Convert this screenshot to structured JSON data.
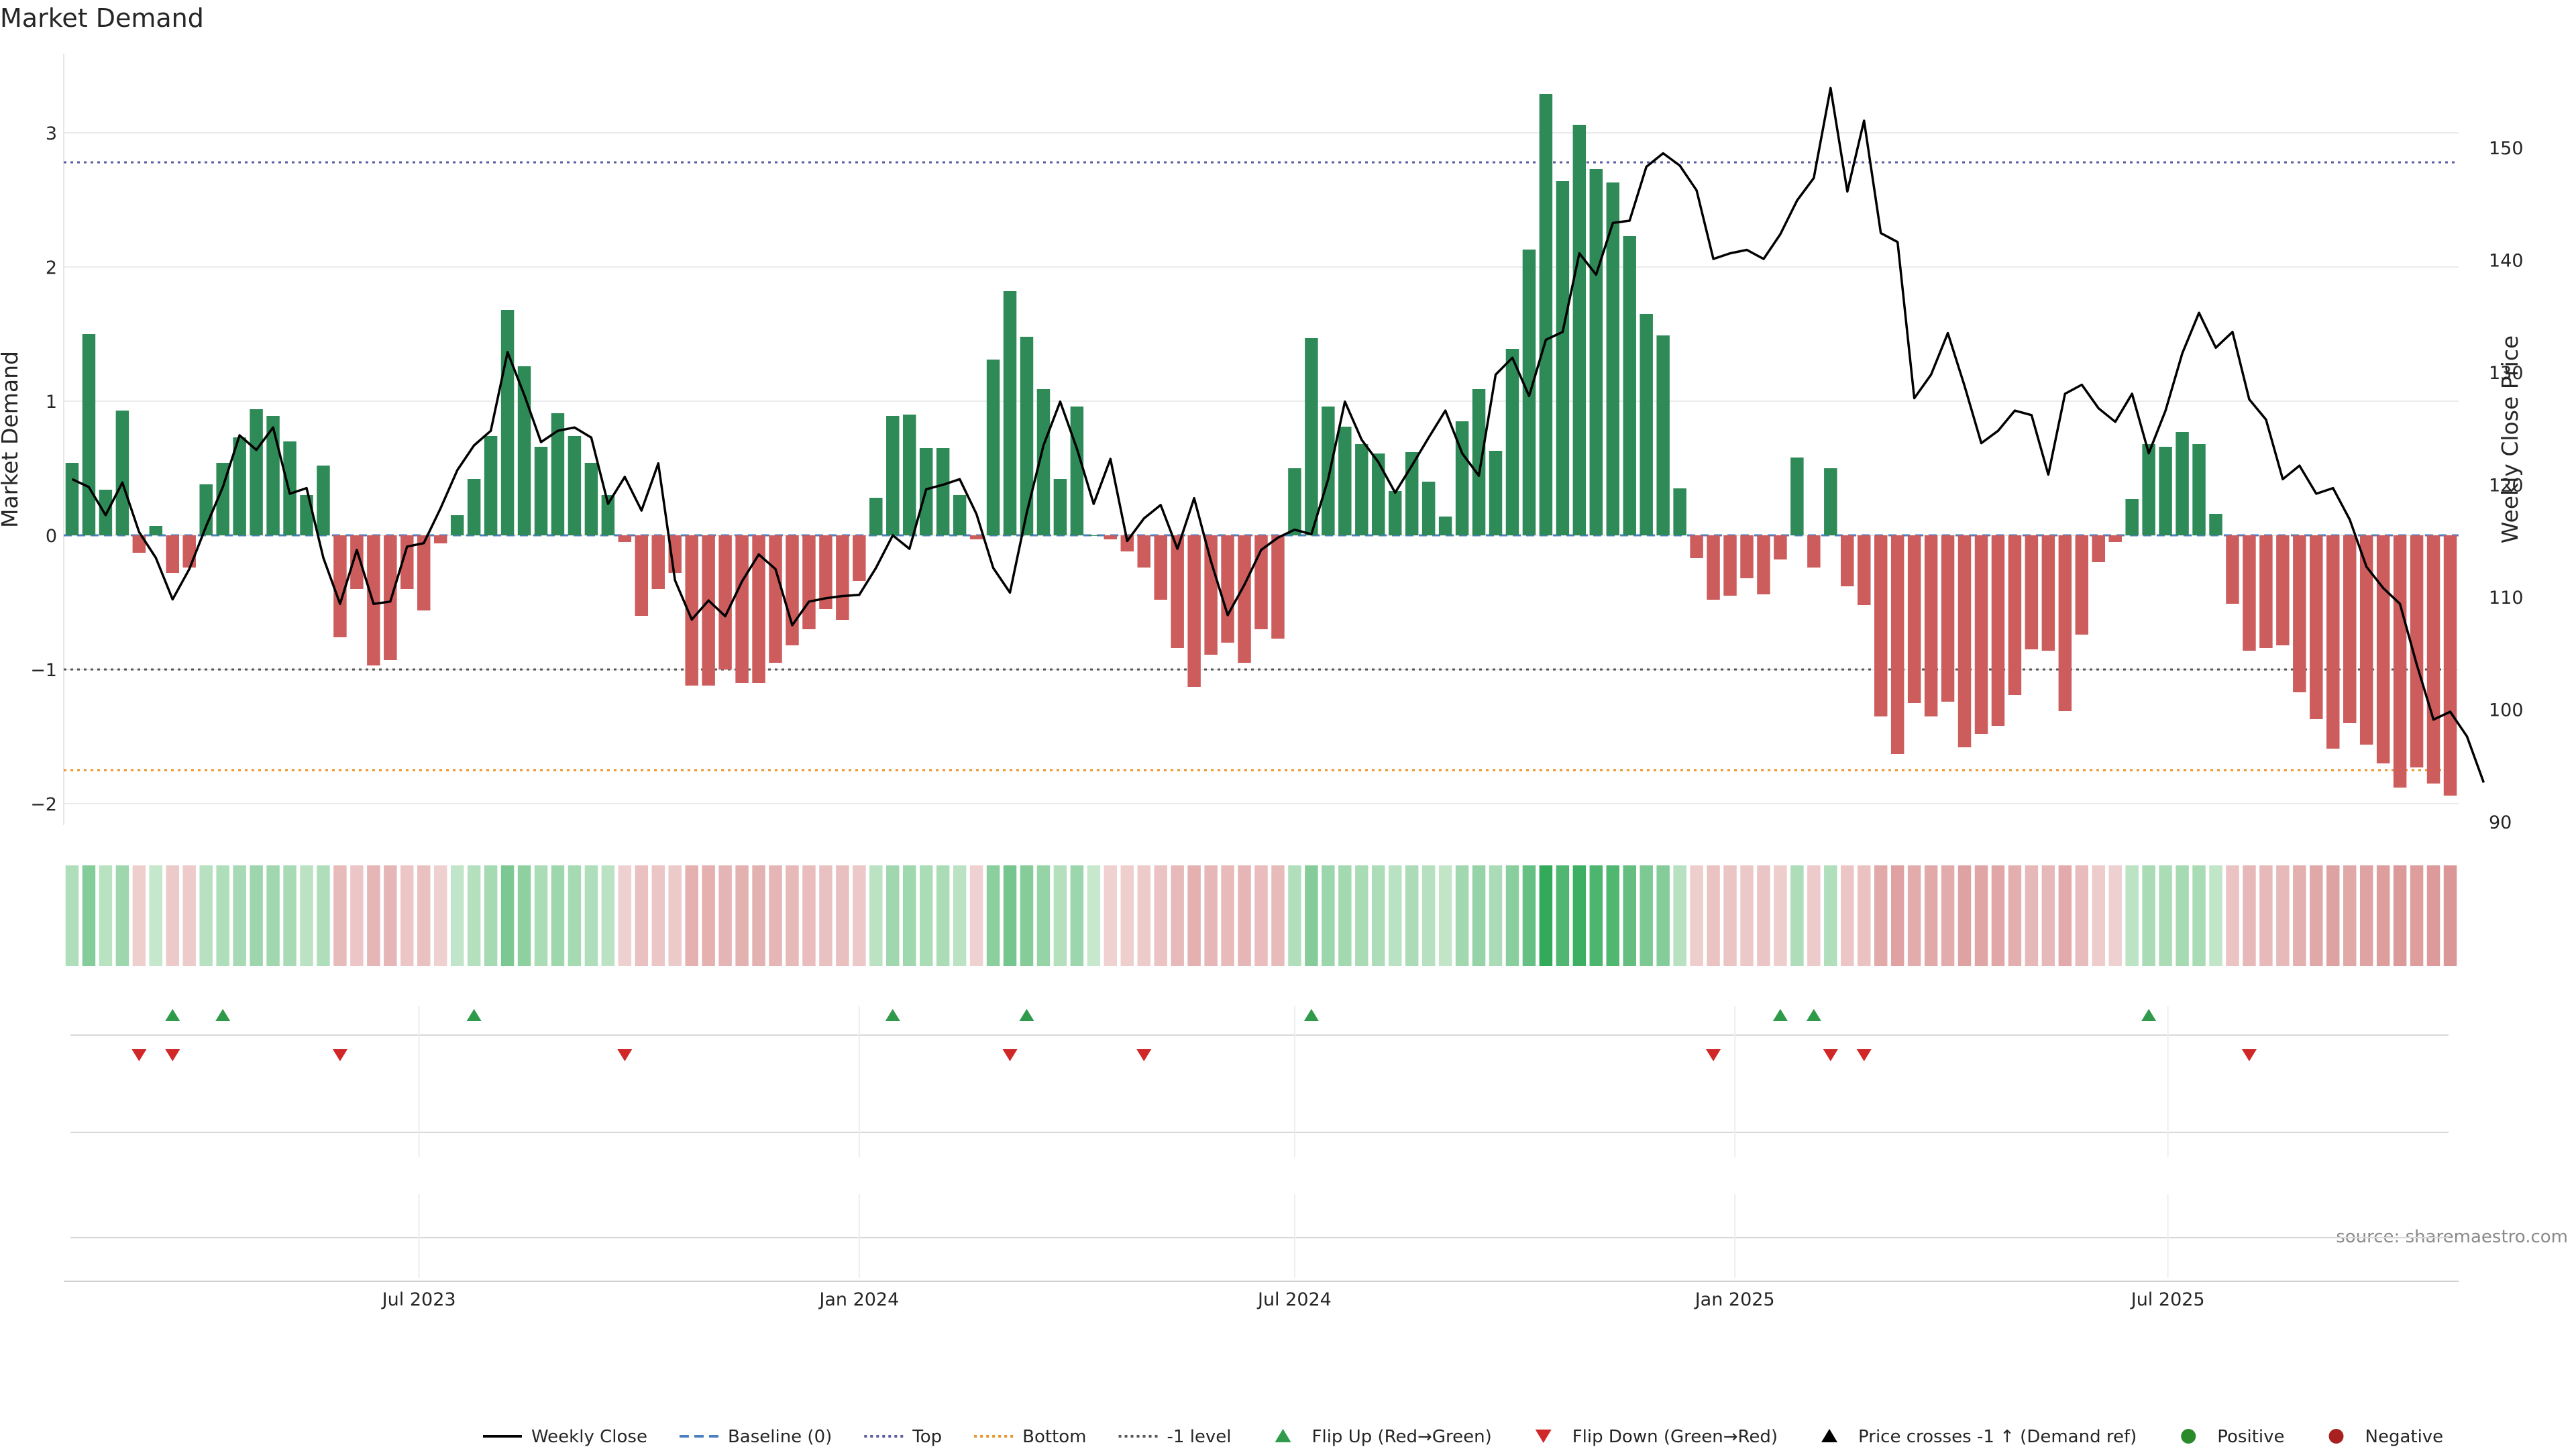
{
  "chart_data": {
    "type": "bar",
    "title": "Market Demand",
    "ylabel": "Market Demand",
    "y2label": "Weekly Close Price",
    "source": "source: sharemaestro.com",
    "ylim": [
      -2.2,
      3.35
    ],
    "y2lim": [
      89.5,
      158.5
    ],
    "yticks": [
      -2,
      -1,
      0,
      1,
      2,
      3
    ],
    "y2ticks": [
      90,
      100,
      110,
      120,
      130,
      140,
      150
    ],
    "x_start": "2023-02-06",
    "x_step_days": 7,
    "x_end": "2025-11-10",
    "xtick_labels": [
      {
        "date": "2023-07-01",
        "label": "Jul 2023"
      },
      {
        "date": "2024-01-01",
        "label": "Jan 2024"
      },
      {
        "date": "2024-07-01",
        "label": "Jul 2024"
      },
      {
        "date": "2025-01-01",
        "label": "Jan 2025"
      },
      {
        "date": "2025-07-01",
        "label": "Jul 2025"
      }
    ],
    "levels": {
      "top": 2.78,
      "bottom": -1.75,
      "minus_one": -1.0,
      "baseline": 0
    },
    "demand": [
      0.54,
      1.5,
      0.34,
      0.93,
      -0.13,
      0.07,
      -0.28,
      -0.24,
      0.38,
      0.54,
      0.73,
      0.94,
      0.89,
      0.7,
      0.3,
      0.52,
      -0.76,
      -0.4,
      -0.97,
      -0.93,
      -0.4,
      -0.56,
      -0.06,
      0.15,
      0.42,
      0.74,
      1.68,
      1.26,
      0.66,
      0.91,
      0.74,
      0.54,
      0.3,
      -0.05,
      -0.6,
      -0.4,
      -0.28,
      -1.12,
      -1.12,
      -1.0,
      -1.1,
      -1.1,
      -0.95,
      -0.82,
      -0.7,
      -0.55,
      -0.63,
      -0.34,
      0.28,
      0.89,
      0.9,
      0.65,
      0.65,
      0.3,
      -0.03,
      1.31,
      1.82,
      1.48,
      1.09,
      0.42,
      0.96,
      0.0,
      -0.03,
      -0.12,
      -0.24,
      -0.48,
      -0.84,
      -1.13,
      -0.89,
      -0.8,
      -0.95,
      -0.7,
      -0.77,
      0.5,
      1.47,
      0.96,
      0.81,
      0.68,
      0.61,
      0.33,
      0.62,
      0.4,
      0.14,
      0.85,
      1.09,
      0.63,
      1.39,
      2.13,
      3.29,
      2.64,
      3.06,
      2.73,
      2.63,
      2.23,
      1.65,
      1.49,
      0.35,
      -0.17,
      -0.48,
      -0.45,
      -0.32,
      -0.44,
      -0.18,
      0.58,
      -0.24,
      0.5,
      -0.38,
      -0.52,
      -1.35,
      -1.63,
      -1.25,
      -1.35,
      -1.24,
      -1.58,
      -1.48,
      -1.42,
      -1.19,
      -0.85,
      -0.86,
      -1.31,
      -0.74,
      -0.2,
      -0.05,
      0.27,
      0.68,
      0.66,
      0.77,
      0.68,
      0.16,
      -0.51,
      -0.86,
      -0.84,
      -0.82,
      -1.17,
      -1.37,
      -1.59,
      -1.4,
      -1.56,
      -1.7,
      -1.88,
      -1.73,
      -1.85,
      -1.94
    ],
    "close": [
      120.5,
      119.8,
      117.3,
      120.2,
      115.8,
      113.5,
      109.8,
      112.5,
      116.3,
      119.8,
      124.4,
      123.1,
      125.1,
      119.2,
      119.7,
      113.5,
      109.4,
      114.2,
      109.4,
      109.6,
      114.5,
      114.8,
      117.9,
      121.3,
      123.5,
      124.8,
      131.8,
      128.0,
      123.8,
      124.8,
      125.1,
      124.2,
      118.3,
      120.7,
      117.7,
      121.9,
      111.5,
      108.0,
      109.7,
      108.3,
      111.4,
      113.8,
      112.5,
      107.5,
      109.6,
      109.9,
      110.1,
      110.2,
      112.6,
      115.5,
      114.3,
      119.6,
      120.0,
      120.5,
      117.4,
      112.6,
      110.4,
      117.5,
      123.5,
      127.4,
      123.2,
      118.3,
      122.3,
      115.0,
      117.0,
      118.2,
      114.3,
      118.8,
      113.2,
      108.4,
      111.1,
      114.2,
      115.3,
      116.0,
      115.6,
      120.5,
      127.4,
      124.0,
      122.0,
      119.3,
      121.7,
      124.2,
      126.6,
      122.8,
      120.8,
      129.8,
      131.3,
      127.9,
      132.9,
      133.6,
      140.6,
      138.7,
      143.3,
      143.5,
      148.3,
      149.5,
      148.4,
      146.2,
      140.1,
      140.6,
      140.9,
      140.1,
      142.3,
      145.3,
      147.3,
      155.3,
      146.1,
      152.4,
      142.4,
      141.6,
      127.7,
      129.8,
      133.5,
      128.8,
      123.7,
      124.8,
      126.6,
      126.2,
      120.9,
      128.1,
      128.9,
      126.8,
      125.6,
      128.1,
      122.8,
      126.6,
      131.7,
      135.3,
      132.2,
      133.6,
      127.6,
      125.8,
      120.5,
      121.7,
      119.2,
      119.7,
      116.9,
      112.7,
      110.8,
      109.4,
      104.0,
      99.1,
      99.8,
      97.6,
      93.5
    ],
    "heat_strip": "intensity by demand value; green positive, red negative",
    "flips": {
      "up_dates": [
        "2023-03-20",
        "2023-04-10",
        "2023-07-24",
        "2024-01-15",
        "2024-03-11",
        "2024-07-08",
        "2025-01-20",
        "2025-02-03",
        "2025-06-23"
      ],
      "down_dates": [
        "2023-03-06",
        "2023-03-20",
        "2023-05-29",
        "2023-09-25",
        "2024-03-04",
        "2024-04-29",
        "2024-12-23",
        "2025-02-10",
        "2025-02-24",
        "2025-08-04"
      ]
    },
    "legend": [
      {
        "label": "Weekly Close",
        "kind": "line",
        "color": "#000000"
      },
      {
        "label": "Baseline (0)",
        "kind": "dash",
        "color": "#4a7fc1"
      },
      {
        "label": "Top",
        "kind": "dot",
        "color": "#5a5aa0"
      },
      {
        "label": "Bottom",
        "kind": "dot",
        "color": "#e8942a"
      },
      {
        "label": "-1 level",
        "kind": "dot",
        "color": "#555555"
      },
      {
        "label": "Flip Up (Red→Green)",
        "kind": "tri-up",
        "color": "#2e9a4a"
      },
      {
        "label": "Flip Down (Green→Red)",
        "kind": "tri-down",
        "color": "#d02828"
      },
      {
        "label": "Price crosses -1 ↑ (Demand ref)",
        "kind": "tri-up",
        "color": "#000000"
      },
      {
        "label": "Positive",
        "kind": "dot-circle",
        "color": "#2a8a2a"
      },
      {
        "label": "Negative",
        "kind": "dot-circle",
        "color": "#a82020"
      }
    ],
    "colors": {
      "positive_bar": "#2e8b57",
      "negative_bar": "#cd5c5c",
      "line": "#000000",
      "grid": "#ebebeb"
    }
  }
}
